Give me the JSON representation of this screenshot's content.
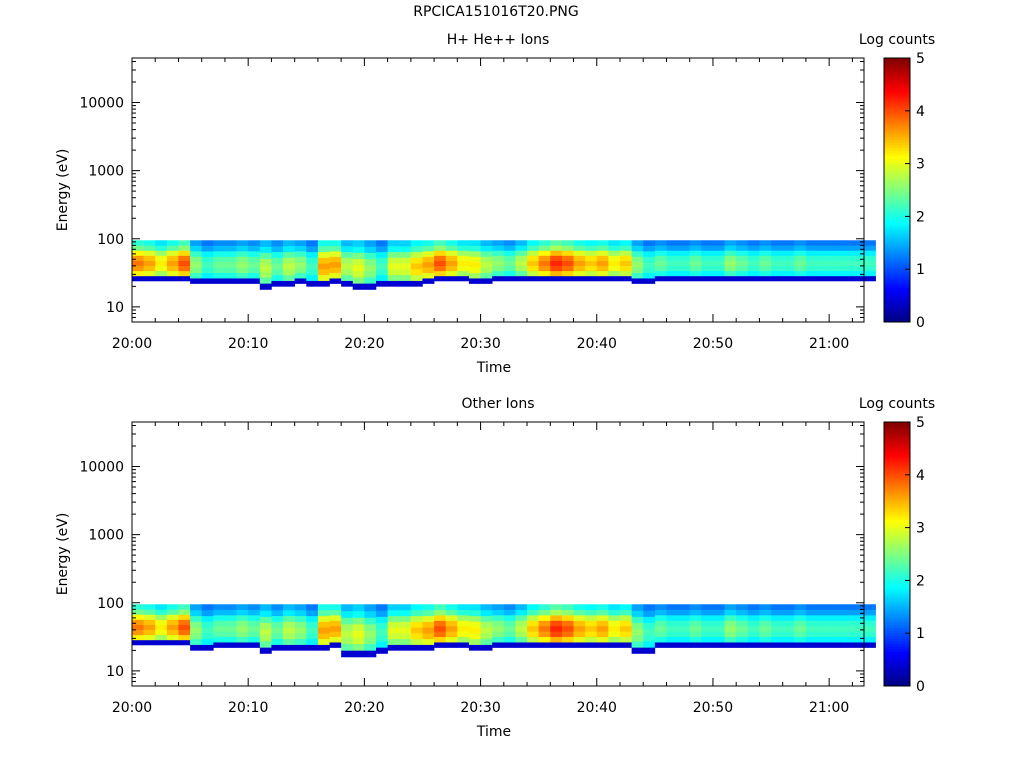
{
  "figure_title": "RPCICA151016T20.PNG",
  "chart_data": [
    {
      "type": "heatmap",
      "title": "H+ He++ Ions",
      "xlabel": "Time",
      "ylabel": "Energy (eV)",
      "x_ticks": [
        "20:00",
        "20:10",
        "20:20",
        "20:30",
        "20:40",
        "20:50",
        "21:00"
      ],
      "x_range": [
        "20:00",
        "21:03"
      ],
      "y_scale": "log",
      "y_ticks": [
        "10",
        "100",
        "1000",
        "10000"
      ],
      "y_range": [
        6,
        45000
      ],
      "colorbar": {
        "label": "Log counts",
        "ticks": [
          "0",
          "1",
          "2",
          "3",
          "4",
          "5"
        ],
        "range": [
          0,
          5
        ],
        "colormap": "jet"
      },
      "time_bins_per_minute": 1,
      "n_time_bins": 64,
      "data": {
        "time_start": "20:00",
        "time_step_minutes": 1,
        "energy_upper_eV": 95,
        "band_lower_eV": [
          24,
          24,
          24,
          24,
          24,
          22,
          22,
          22,
          22,
          22,
          22,
          18,
          20,
          20,
          22,
          20,
          20,
          22,
          20,
          18,
          18,
          20,
          20,
          20,
          20,
          22,
          24,
          24,
          24,
          22,
          22,
          24,
          24,
          24,
          24,
          24,
          24,
          24,
          24,
          24,
          24,
          24,
          24,
          22,
          22,
          24,
          24,
          24,
          24,
          24,
          24,
          24,
          24,
          24,
          24,
          24,
          24,
          24,
          24,
          24,
          24,
          24,
          24,
          24
        ],
        "peak_log_counts": [
          3.8,
          3.6,
          3.2,
          3.6,
          4.0,
          2.6,
          2.2,
          2.4,
          2.4,
          2.6,
          2.4,
          2.8,
          2.4,
          2.8,
          2.6,
          2.2,
          3.6,
          3.6,
          2.8,
          3.0,
          2.6,
          2.2,
          3.0,
          3.0,
          3.4,
          3.6,
          4.0,
          3.6,
          3.2,
          3.2,
          2.8,
          2.6,
          2.4,
          2.8,
          3.4,
          3.8,
          4.2,
          4.0,
          3.6,
          3.4,
          3.6,
          3.2,
          3.4,
          2.6,
          2.2,
          2.4,
          2.2,
          2.2,
          2.4,
          2.2,
          2.2,
          2.6,
          2.4,
          2.2,
          2.4,
          2.2,
          2.2,
          2.4,
          2.2,
          2.2,
          2.2,
          2.2,
          2.2,
          2.2
        ]
      }
    },
    {
      "type": "heatmap",
      "title": "Other Ions",
      "xlabel": "Time",
      "ylabel": "Energy (eV)",
      "x_ticks": [
        "20:00",
        "20:10",
        "20:20",
        "20:30",
        "20:40",
        "20:50",
        "21:00"
      ],
      "x_range": [
        "20:00",
        "21:03"
      ],
      "y_scale": "log",
      "y_ticks": [
        "10",
        "100",
        "1000",
        "10000"
      ],
      "y_range": [
        6,
        45000
      ],
      "colorbar": {
        "label": "Log counts",
        "ticks": [
          "0",
          "1",
          "2",
          "3",
          "4",
          "5"
        ],
        "range": [
          0,
          5
        ],
        "colormap": "jet"
      },
      "time_bins_per_minute": 1,
      "n_time_bins": 64,
      "data": {
        "time_start": "20:00",
        "time_step_minutes": 1,
        "energy_upper_eV": 95,
        "band_lower_eV": [
          24,
          24,
          24,
          24,
          24,
          20,
          20,
          22,
          22,
          22,
          22,
          18,
          20,
          20,
          20,
          20,
          20,
          22,
          16,
          16,
          16,
          18,
          20,
          20,
          20,
          20,
          22,
          22,
          22,
          20,
          20,
          22,
          22,
          22,
          22,
          22,
          22,
          22,
          22,
          22,
          22,
          22,
          22,
          18,
          18,
          22,
          22,
          22,
          22,
          22,
          22,
          22,
          22,
          22,
          22,
          22,
          22,
          22,
          22,
          22,
          22,
          22,
          22,
          22
        ],
        "peak_log_counts": [
          3.8,
          3.6,
          3.2,
          3.6,
          4.0,
          2.6,
          2.2,
          2.4,
          2.4,
          2.6,
          2.4,
          2.8,
          2.4,
          2.8,
          2.6,
          2.2,
          3.6,
          3.6,
          2.8,
          3.0,
          2.6,
          2.2,
          3.0,
          3.0,
          3.4,
          3.6,
          4.0,
          3.6,
          3.2,
          3.2,
          2.8,
          2.6,
          2.4,
          2.8,
          3.4,
          3.8,
          4.2,
          4.0,
          3.6,
          3.4,
          3.6,
          3.2,
          3.4,
          2.6,
          2.2,
          2.4,
          2.2,
          2.2,
          2.4,
          2.2,
          2.2,
          2.6,
          2.4,
          2.2,
          2.4,
          2.2,
          2.2,
          2.4,
          2.2,
          2.2,
          2.2,
          2.2,
          2.2,
          2.2
        ]
      }
    }
  ]
}
